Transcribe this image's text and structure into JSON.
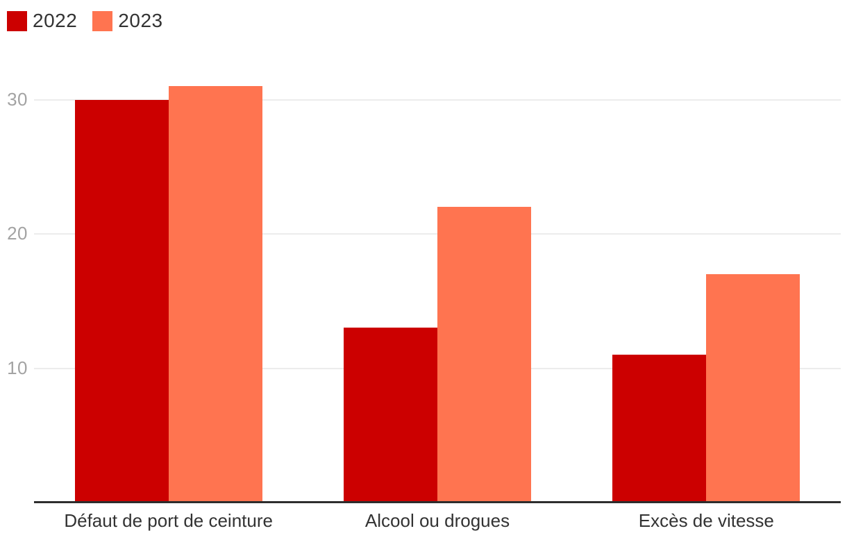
{
  "chart_data": {
    "type": "bar",
    "categories": [
      "Défaut de port de ceinture",
      "Alcool ou drogues",
      "Excès de vitesse"
    ],
    "series": [
      {
        "name": "2022",
        "color": "#cc0000",
        "values": [
          30,
          13,
          11
        ]
      },
      {
        "name": "2023",
        "color": "#ff7450",
        "values": [
          31,
          22,
          17
        ]
      }
    ],
    "yticks": [
      10,
      20,
      30
    ],
    "ylim": [
      0,
      32
    ],
    "grid": true,
    "legend_position": "top-left",
    "title": "",
    "xlabel": "",
    "ylabel": ""
  },
  "colors": {
    "grid": "#ececec",
    "axis": "#2d2d2d",
    "tick_text": "#a3a3a3",
    "label_text": "#333333",
    "background": "#ffffff"
  }
}
